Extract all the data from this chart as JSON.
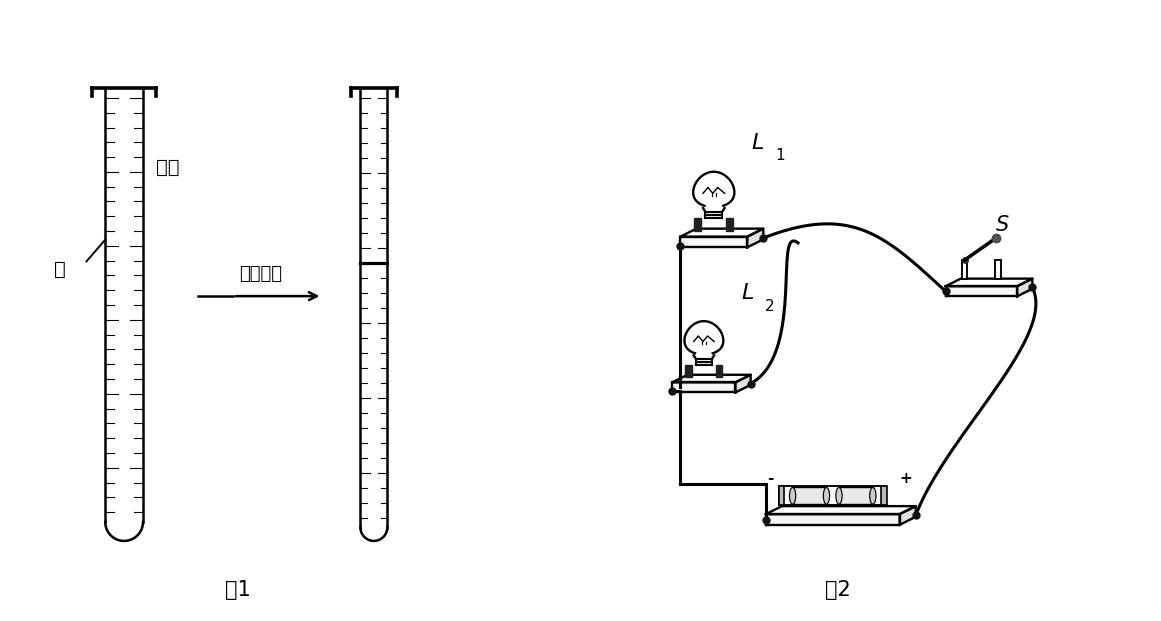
{
  "fig1_label": "图1",
  "fig2_label": "图2",
  "label_alcohol": "酒精",
  "label_water": "水",
  "label_mix": "充分混合",
  "label_L1": "L",
  "label_L1_sub": "1",
  "label_L2": "L",
  "label_L2_sub": "2",
  "label_S": "S",
  "label_minus": "-",
  "label_plus": "+",
  "line_color": "#000000",
  "bg_color": "#ffffff"
}
